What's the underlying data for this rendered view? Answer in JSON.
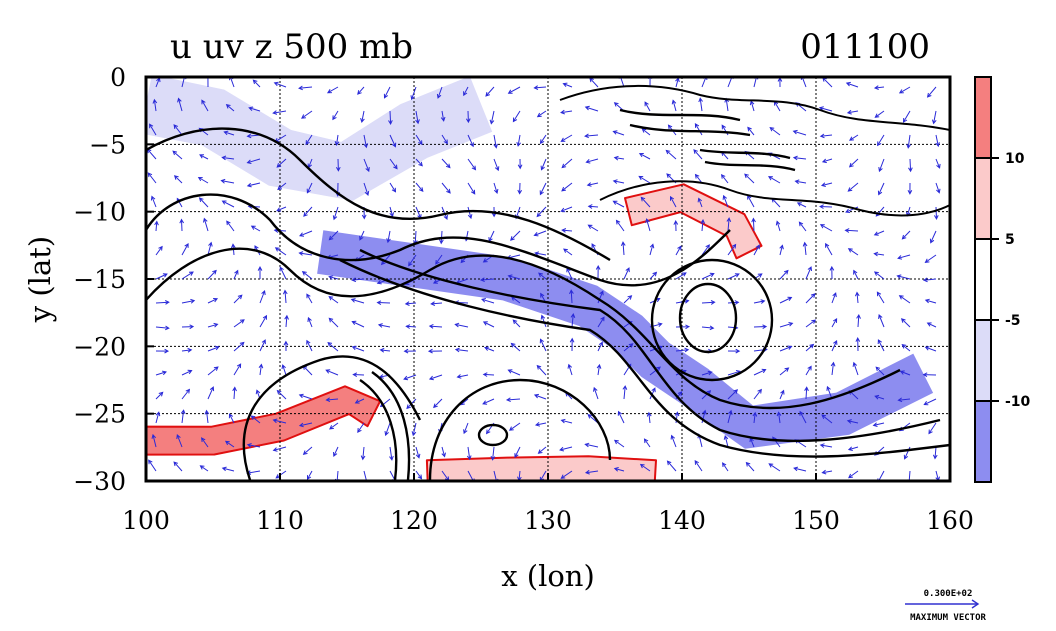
{
  "chart_data": {
    "type": "heatmap",
    "title": "u uv z 500 mb",
    "date_label": "011100",
    "xlabel": "x (lon)",
    "ylabel": "y (lat)",
    "xlim": [
      100,
      160
    ],
    "ylim": [
      -30,
      0
    ],
    "xticks": [
      100,
      110,
      120,
      130,
      140,
      150,
      160
    ],
    "yticks": [
      0,
      -5,
      -10,
      -15,
      -20,
      -25,
      -30
    ],
    "grid": true,
    "colorbar": {
      "position": "right",
      "tick_labels": [
        "10",
        "5",
        "-5",
        "-10"
      ],
      "tick_values": [
        10,
        5,
        -5,
        -10
      ],
      "levels": [
        {
          "range": [
            "10",
            "max"
          ],
          "color": "#f47f7f"
        },
        {
          "range": [
            "5",
            "10"
          ],
          "color": "#fbcaca"
        },
        {
          "range": [
            "-5",
            "5"
          ],
          "color": "#ffffff"
        },
        {
          "range": [
            "-10",
            "-5"
          ],
          "color": "#dcdcf8"
        },
        {
          "range": [
            "min",
            "-10"
          ],
          "color": "#8d8df0"
        }
      ]
    },
    "overlays": {
      "contours": "z 500 mb (black)",
      "vectors": "uv wind (blue)",
      "positive_contour_color": "#e01010"
    },
    "regions": [
      {
        "label": "uv_easterly_jet",
        "lon": [
          113,
          120,
          127,
          133,
          136,
          138,
          141,
          145,
          152,
          158
        ],
        "lat": [
          -13,
          -14,
          -15,
          -17,
          -19,
          -21,
          -23,
          -26,
          -25,
          -22
        ],
        "value": -10
      },
      {
        "label": "northwest_negative",
        "lon": [
          100,
          105,
          110,
          115,
          120,
          125
        ],
        "lat": [
          -2,
          -3,
          -6,
          -7,
          -4,
          -2
        ],
        "value": -6
      },
      {
        "label": "coral_sea_positive",
        "lon": [
          136,
          140,
          144,
          145
        ],
        "lat": [
          -10,
          -9,
          -11,
          -13
        ],
        "value": 7
      },
      {
        "label": "southwest_positive_jet",
        "lon": [
          100,
          105,
          110,
          115,
          117
        ],
        "lat": [
          -27,
          -27,
          -26,
          -24,
          -25
        ],
        "value": 11
      },
      {
        "label": "south_positive_band",
        "lon": [
          121,
          127,
          133,
          138
        ],
        "lat": [
          -29.5,
          -29.3,
          -29.2,
          -29.5
        ],
        "value": 7
      }
    ],
    "vector_legend": {
      "magnitude": "0.300E+02",
      "label": "MAXIMUM VECTOR"
    }
  }
}
